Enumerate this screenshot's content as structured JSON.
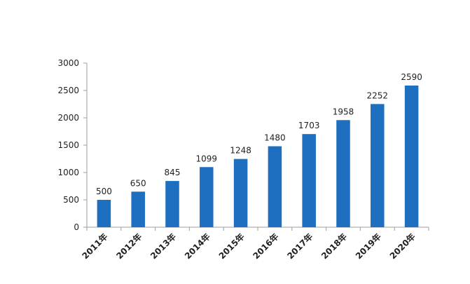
{
  "chart_data": {
    "type": "bar",
    "categories": [
      "2011年",
      "2012年",
      "2013年",
      "2014年",
      "2015年",
      "2016年",
      "2017年",
      "2018年",
      "2019年",
      "2020年"
    ],
    "values": [
      500,
      650,
      845,
      1099,
      1248,
      1480,
      1703,
      1958,
      2252,
      2590
    ],
    "ylim": [
      0,
      3000
    ],
    "yticks": [
      0,
      500,
      1000,
      1500,
      2000,
      2500,
      3000
    ],
    "grid": false,
    "legend": "none",
    "bar_color": "#1f6fc1",
    "axis_color": "#9e9e9e"
  }
}
